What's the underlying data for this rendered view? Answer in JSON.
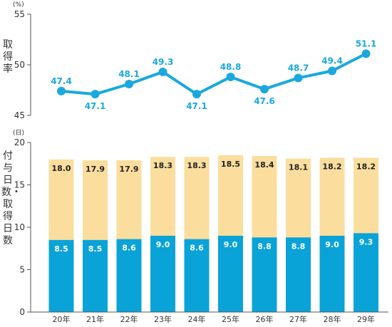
{
  "chart_data": [
    {
      "type": "line",
      "ylabel": "取得率",
      "yunit": "(%)",
      "ylim": [
        45,
        55
      ],
      "yticks": [
        45,
        50,
        55
      ],
      "categories": [
        "20年",
        "21年",
        "22年",
        "23年",
        "24年",
        "25年",
        "26年",
        "27年",
        "28年",
        "29年"
      ],
      "values": [
        47.4,
        47.1,
        48.1,
        49.3,
        47.1,
        48.8,
        47.6,
        48.7,
        49.4,
        51.1
      ],
      "value_labels": [
        "47.4",
        "47.1",
        "48.1",
        "49.3",
        "47.1",
        "48.8",
        "47.6",
        "48.7",
        "49.4",
        "51.1"
      ],
      "grid": false
    },
    {
      "type": "bar",
      "ylabel": "付与日数・取得日数",
      "yunit": "(日)",
      "ylim": [
        0,
        20
      ],
      "yticks": [
        0,
        5,
        10,
        15,
        20
      ],
      "categories": [
        "20年",
        "21年",
        "22年",
        "23年",
        "24年",
        "25年",
        "26年",
        "27年",
        "28年",
        "29年"
      ],
      "series": [
        {
          "values": [
            8.5,
            8.5,
            8.6,
            9.0,
            8.6,
            9.0,
            8.8,
            8.8,
            9.0,
            9.3
          ],
          "labels": [
            "8.5",
            "8.5",
            "8.6",
            "9.0",
            "8.6",
            "9.0",
            "8.8",
            "8.8",
            "9.0",
            "9.3"
          ]
        },
        {
          "values": [
            18.0,
            17.9,
            17.9,
            18.3,
            18.3,
            18.5,
            18.4,
            18.1,
            18.2,
            18.2
          ],
          "labels": [
            "18.0",
            "17.9",
            "17.9",
            "18.3",
            "18.3",
            "18.5",
            "18.4",
            "18.1",
            "18.2",
            "18.2"
          ]
        }
      ],
      "grid": false
    }
  ],
  "colors": {
    "line": "#1AA8DF",
    "line_label": "#1AA8DF",
    "bar_acquired": "#0AA3D8",
    "bar_granted": "#FBDE9E",
    "axis": "#555555",
    "text": "#333333"
  }
}
